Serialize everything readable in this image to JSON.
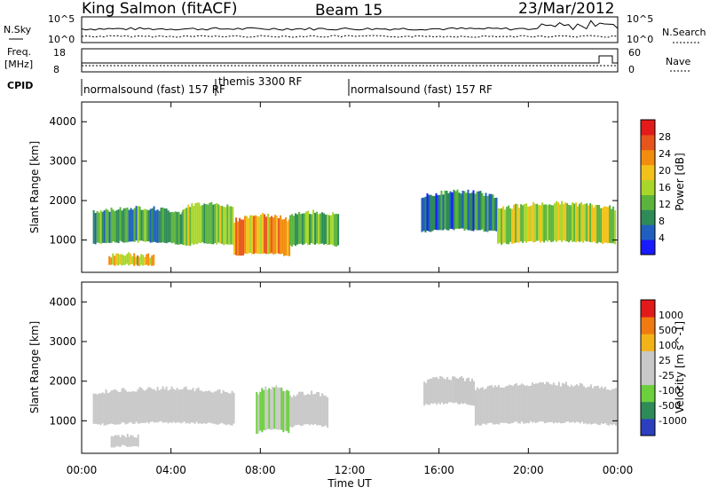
{
  "header": {
    "station": "King Salmon (fitACF)",
    "beam": "Beam 15",
    "date": "23/Mar/2012"
  },
  "noise_panel": {
    "left_label": "N.Sky",
    "right_label": "N.Search",
    "left_ticks": [
      "10^5",
      "10^0"
    ],
    "right_ticks": [
      "10^5",
      "10^0"
    ]
  },
  "freq_panel": {
    "left_label_1": "Freq.",
    "left_label_2": "[MHz]",
    "right_label": "Nave",
    "left_ticks": [
      "18",
      "8"
    ],
    "right_ticks": [
      "60",
      "0"
    ]
  },
  "cpid_panel": {
    "label": "CPID",
    "modes": [
      {
        "name": "normalsound (fast) 157 RF",
        "start_hour": 0,
        "end_hour": 6
      },
      {
        "name": "themis 3300 RF",
        "start_hour": 6,
        "end_hour": 12
      },
      {
        "name": "normalsound (fast) 157 RF",
        "start_hour": 12,
        "end_hour": 24
      }
    ]
  },
  "x_axis": {
    "title": "Time UT",
    "ticks": [
      "00:00",
      "04:00",
      "08:00",
      "12:00",
      "16:00",
      "20:00",
      "00:00"
    ]
  },
  "chart_data": [
    {
      "type": "heatmap",
      "name": "power",
      "ylabel": "Slant Range [km]",
      "y_ticks": [
        1000,
        2000,
        3000,
        4000
      ],
      "ylim": [
        180,
        4500
      ],
      "xlim_hours": [
        0,
        24
      ],
      "colorbar": {
        "label": "Power [dB]",
        "ticks": [
          "4",
          "8",
          "12",
          "16",
          "20",
          "24",
          "28"
        ],
        "colors": [
          "#1a1aff",
          "#1f5fbf",
          "#2e8b57",
          "#5ab43c",
          "#a8d62a",
          "#f2c11a",
          "#f28c0f",
          "#e8551c",
          "#e21a1a"
        ]
      },
      "bands": [
        {
          "start": 0.5,
          "end": 4.5,
          "low": 900,
          "high": 1700,
          "value": 10
        },
        {
          "start": 1.2,
          "end": 3.2,
          "low": 350,
          "high": 600,
          "value": 20
        },
        {
          "start": 4.5,
          "end": 6.8,
          "low": 850,
          "high": 1800,
          "value": 14
        },
        {
          "start": 6.8,
          "end": 9.3,
          "low": 600,
          "high": 1500,
          "value": 22
        },
        {
          "start": 9.3,
          "end": 11.5,
          "low": 850,
          "high": 1600,
          "value": 12
        },
        {
          "start": 15.2,
          "end": 18.6,
          "low": 1200,
          "high": 2100,
          "value": 8
        },
        {
          "start": 18.6,
          "end": 23.9,
          "low": 900,
          "high": 1800,
          "value": 16
        }
      ]
    },
    {
      "type": "heatmap",
      "name": "velocity",
      "ylabel": "Slant Range [km]",
      "y_ticks": [
        1000,
        2000,
        3000,
        4000
      ],
      "ylim": [
        180,
        4500
      ],
      "xlim_hours": [
        0,
        24
      ],
      "colorbar": {
        "label": "Velocity [m s^-1]",
        "ticks": [
          "1000",
          "500",
          "100",
          "25",
          "-25",
          "-100",
          "-500",
          "-1000"
        ],
        "colors": [
          "#2b3fbf",
          "#2e8b57",
          "#6ccf3c",
          "#c8c8c8",
          "#c8c8c8",
          "#f2b31a",
          "#f07a10",
          "#e21a1a"
        ]
      },
      "bands": [
        {
          "start": 0.5,
          "end": 6.8,
          "low": 900,
          "high": 1700,
          "value": 0
        },
        {
          "start": 1.3,
          "end": 2.5,
          "low": 350,
          "high": 600,
          "value": 150
        },
        {
          "start": 7.8,
          "end": 9.3,
          "low": 700,
          "high": 1700,
          "value": -300
        },
        {
          "start": 9.3,
          "end": 11.0,
          "low": 850,
          "high": 1600,
          "value": -200
        },
        {
          "start": 15.3,
          "end": 17.6,
          "low": 1400,
          "high": 2000,
          "value": 150
        },
        {
          "start": 17.6,
          "end": 23.9,
          "low": 900,
          "high": 1800,
          "value": 0
        }
      ]
    }
  ]
}
